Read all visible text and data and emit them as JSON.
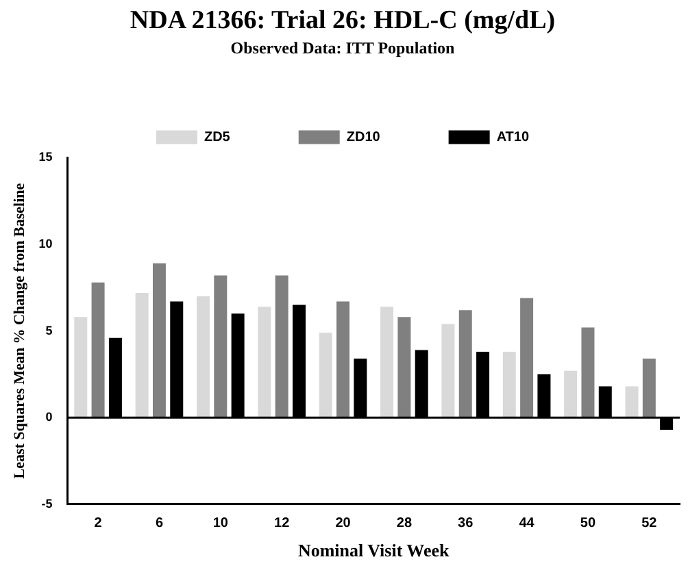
{
  "chart_data": {
    "type": "bar",
    "title": "NDA 21366: Trial 26: HDL-C (mg/dL)",
    "subtitle": "Observed Data: ITT Population",
    "xlabel": "Nominal Visit Week",
    "ylabel": "Least Squares Mean % Change from Baseline",
    "categories": [
      "2",
      "6",
      "10",
      "12",
      "20",
      "28",
      "36",
      "44",
      "50",
      "52"
    ],
    "series": [
      {
        "name": "ZD5",
        "color": "#d9d9d9",
        "values": [
          5.8,
          7.2,
          7.0,
          6.4,
          4.9,
          6.4,
          5.4,
          3.8,
          2.7,
          1.8
        ]
      },
      {
        "name": "ZD10",
        "color": "#808080",
        "values": [
          7.8,
          8.9,
          8.2,
          8.2,
          6.7,
          5.8,
          6.2,
          6.9,
          5.2,
          3.4
        ]
      },
      {
        "name": "AT10",
        "color": "#000000",
        "values": [
          4.6,
          6.7,
          6.0,
          6.5,
          3.4,
          3.9,
          3.8,
          2.5,
          1.8,
          -0.7
        ]
      }
    ],
    "ylim": [
      -5,
      15
    ],
    "yticks": [
      -5,
      0,
      5,
      10,
      15
    ],
    "grid": false,
    "legend": "top",
    "ref_lines": [
      {
        "axis": "y",
        "value": 0,
        "color": "#000000"
      }
    ]
  }
}
